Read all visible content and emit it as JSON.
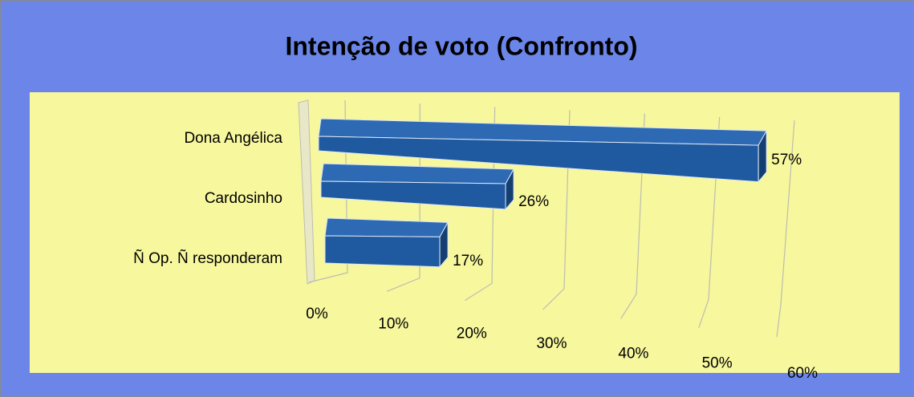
{
  "chart_data": {
    "type": "bar3d",
    "orientation": "horizontal",
    "title": "Intenção de voto (Confronto)",
    "categories": [
      "Dona Angélica",
      "Cardosinho",
      "Ñ Op. Ñ responderam"
    ],
    "values": [
      57,
      26,
      17
    ],
    "value_labels": [
      "57%",
      "26%",
      "17%"
    ],
    "color": "#1f5aa0",
    "xlim": [
      0,
      60
    ],
    "xticks": [
      {
        "value": 0,
        "label": "0%"
      },
      {
        "value": 10,
        "label": "10%"
      },
      {
        "value": 20,
        "label": "20%"
      },
      {
        "value": 30,
        "label": "30%"
      },
      {
        "value": 40,
        "label": "40%"
      },
      {
        "value": 50,
        "label": "50%"
      },
      {
        "value": 60,
        "label": "60%"
      }
    ],
    "grid": true
  }
}
